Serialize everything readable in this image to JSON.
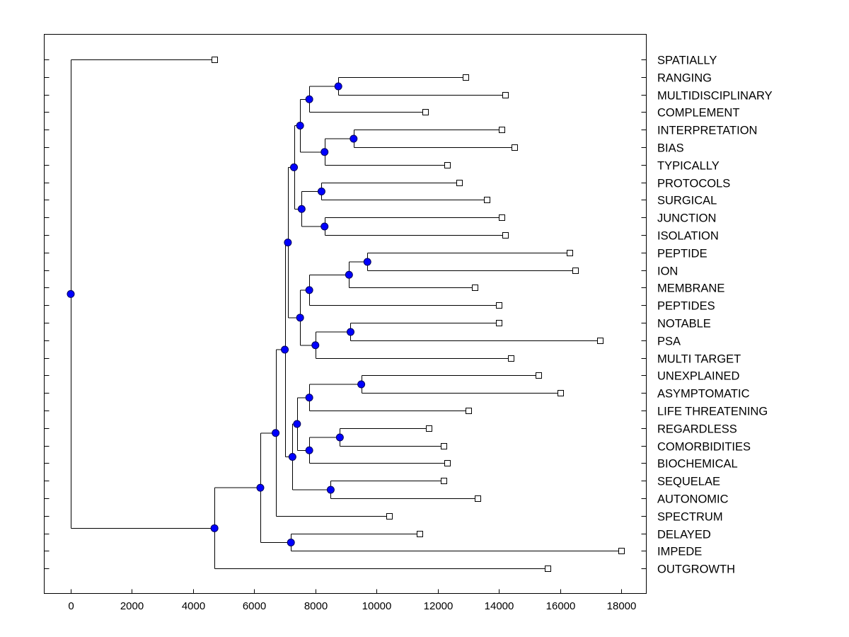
{
  "chart_data": {
    "type": "dendrogram",
    "title": "",
    "xlabel": "",
    "ylabel": "",
    "xlim": [
      -900,
      19000
    ],
    "x_ticks": [
      "0",
      "2000",
      "4000",
      "6000",
      "8000",
      "10000",
      "12000",
      "14000",
      "16000",
      "18000"
    ],
    "leaves": [
      "SPATIALLY",
      "RANGING",
      "MULTIDISCIPLINARY",
      "COMPLEMENT",
      "INTERPRETATION",
      "BIAS",
      "TYPICALLY",
      "PROTOCOLS",
      "SURGICAL",
      "JUNCTION",
      "ISOLATION",
      "PEPTIDE",
      "ION",
      "MEMBRANE",
      "PEPTIDES",
      "NOTABLE",
      "PSA",
      "MULTI TARGET",
      "UNEXPLAINED",
      "ASYMPTOMATIC",
      "LIFE THREATENING",
      "REGARDLESS",
      "COMORBIDITIES",
      "BIOCHEMICAL",
      "SEQUELAE",
      "AUTONOMIC",
      "SPECTRUM",
      "DELAYED",
      "IMPEDE",
      "OUTGROWTH"
    ],
    "leaf_x": [
      4700,
      12900,
      14200,
      11600,
      14100,
      14500,
      12300,
      12700,
      13600,
      14100,
      14200,
      16300,
      16500,
      13200,
      14000,
      14000,
      17300,
      14400,
      15300,
      16000,
      13000,
      11700,
      12200,
      12300,
      12200,
      13300,
      10400,
      11400,
      18000,
      15600
    ],
    "merges": [
      {
        "name": "n1",
        "x": 8750,
        "children": [
          "RANGING",
          "MULTIDISCIPLINARY"
        ]
      },
      {
        "name": "n2",
        "x": 7800,
        "children": [
          "n1",
          "COMPLEMENT"
        ]
      },
      {
        "name": "n3",
        "x": 9250,
        "children": [
          "INTERPRETATION",
          "BIAS"
        ]
      },
      {
        "name": "n4",
        "x": 8300,
        "children": [
          "n3",
          "TYPICALLY"
        ]
      },
      {
        "name": "n5",
        "x": 7500,
        "children": [
          "n2",
          "n4"
        ]
      },
      {
        "name": "n6",
        "x": 8200,
        "children": [
          "PROTOCOLS",
          "SURGICAL"
        ]
      },
      {
        "name": "n7",
        "x": 8300,
        "children": [
          "JUNCTION",
          "ISOLATION"
        ]
      },
      {
        "name": "n8",
        "x": 7550,
        "children": [
          "n6",
          "n7"
        ]
      },
      {
        "name": "n9",
        "x": 7300,
        "children": [
          "n5",
          "n8"
        ]
      },
      {
        "name": "n10",
        "x": 9700,
        "children": [
          "PEPTIDE",
          "ION"
        ]
      },
      {
        "name": "n11",
        "x": 9100,
        "children": [
          "n10",
          "MEMBRANE"
        ]
      },
      {
        "name": "n12",
        "x": 7800,
        "children": [
          "n11",
          "PEPTIDES"
        ]
      },
      {
        "name": "n13",
        "x": 9150,
        "children": [
          "NOTABLE",
          "PSA"
        ]
      },
      {
        "name": "n14",
        "x": 8000,
        "children": [
          "n13",
          "MULTI TARGET"
        ]
      },
      {
        "name": "n15",
        "x": 7500,
        "children": [
          "n12",
          "n14"
        ]
      },
      {
        "name": "n16",
        "x": 7100,
        "children": [
          "n9",
          "n15"
        ]
      },
      {
        "name": "n17",
        "x": 9500,
        "children": [
          "UNEXPLAINED",
          "ASYMPTOMATIC"
        ]
      },
      {
        "name": "n18",
        "x": 7800,
        "children": [
          "n17",
          "LIFE THREATENING"
        ]
      },
      {
        "name": "n19",
        "x": 8800,
        "children": [
          "REGARDLESS",
          "COMORBIDITIES"
        ]
      },
      {
        "name": "n20",
        "x": 7800,
        "children": [
          "n19",
          "BIOCHEMICAL"
        ]
      },
      {
        "name": "n21",
        "x": 7400,
        "children": [
          "n18",
          "n20"
        ]
      },
      {
        "name": "n22",
        "x": 8500,
        "children": [
          "SEQUELAE",
          "AUTONOMIC"
        ]
      },
      {
        "name": "n23",
        "x": 7250,
        "children": [
          "n21",
          "n22"
        ]
      },
      {
        "name": "n24",
        "x": 7000,
        "children": [
          "n16",
          "n23"
        ]
      },
      {
        "name": "n25",
        "x": 6700,
        "children": [
          "n24",
          "SPECTRUM"
        ]
      },
      {
        "name": "n26",
        "x": 7200,
        "children": [
          "DELAYED",
          "IMPEDE"
        ]
      },
      {
        "name": "n27",
        "x": 6200,
        "children": [
          "n25",
          "n26"
        ]
      },
      {
        "name": "n28",
        "x": 4700,
        "children": [
          "n27",
          "OUTGROWTH"
        ]
      },
      {
        "name": "root",
        "x": 0,
        "children": [
          "SPATIALLY",
          "n28"
        ]
      }
    ],
    "colors": {
      "node_fill": "#0000ff",
      "node_stroke": "#00005a",
      "line": "#000000",
      "leaf_fill": "#ffffff"
    }
  }
}
